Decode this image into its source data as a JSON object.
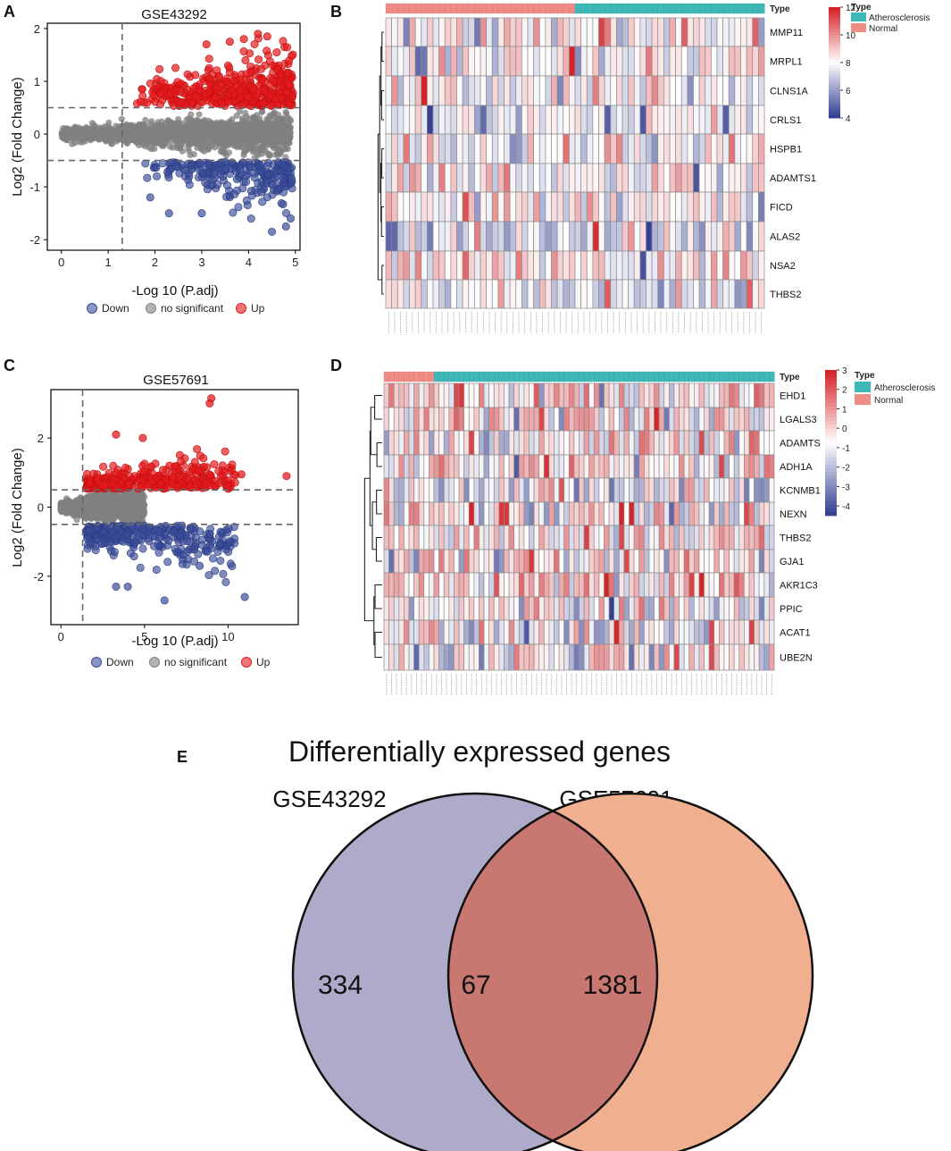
{
  "panels": {
    "A": "A",
    "B": "B",
    "C": "C",
    "D": "D",
    "E": "E"
  },
  "chart_data": [
    {
      "id": "A",
      "type": "scatter",
      "title": "GSE43292",
      "xlabel": "-Log 10 (P.adj)",
      "ylabel": "Log2 (Fold Change)",
      "xlim": [
        -0.3,
        5.1
      ],
      "ylim": [
        -2.2,
        2.1
      ],
      "xticks": [
        "0",
        "1",
        "2",
        "3",
        "4",
        "5"
      ],
      "yticks": [
        "-2",
        "-1",
        "0",
        "1",
        "2"
      ],
      "thresholds": {
        "x": 1.3,
        "y": [
          0.5,
          -0.5
        ]
      },
      "legend": [
        "Down",
        "no significant",
        "Up"
      ],
      "colors": {
        "Down": "#3a4d9a",
        "no significant": "#808080",
        "Up": "#e41a1c"
      },
      "series_summary": {
        "max_x": 4.95,
        "max_up": 1.9,
        "min_down": -1.9
      }
    },
    {
      "id": "C",
      "type": "scatter",
      "title": "GSE57691",
      "xlabel": "-Log 10 (P.adj)",
      "ylabel": "Log2 (Fold Change)",
      "xlim": [
        -0.6,
        14.2
      ],
      "ylim": [
        -3.4,
        3.4
      ],
      "xticks": [
        "0",
        "5",
        "10"
      ],
      "yticks": [
        "-2",
        "0",
        "2"
      ],
      "thresholds": {
        "x": 1.3,
        "y": [
          0.5,
          -0.5
        ]
      },
      "legend": [
        "Down",
        "no significant",
        "Up"
      ],
      "colors": {
        "Down": "#3a4d9a",
        "no significant": "#808080",
        "Up": "#e41a1c"
      },
      "series_summary": {
        "max_x": 13.5,
        "max_up": 3.2,
        "min_down": -2.7
      }
    },
    {
      "id": "B",
      "type": "heatmap",
      "genes": [
        "MMP11",
        "MRPL1",
        "CLNS1A",
        "CRLS1",
        "HSPB1",
        "ADAMTS1",
        "FICD",
        "ALAS2",
        "NSA2",
        "THBS2"
      ],
      "n_normal": 32,
      "n_athero": 32,
      "scale": {
        "min": 4,
        "max": 12,
        "ticks": [
          "4",
          "6",
          "8",
          "10",
          "12"
        ]
      },
      "annotation_label": "Type",
      "legend_title": "Type",
      "groups": [
        "Atherosclerosis",
        "Normal"
      ],
      "group_colors": {
        "Atherosclerosis": "#3fb8b8",
        "Normal": "#ef8c86"
      }
    },
    {
      "id": "D",
      "type": "heatmap",
      "genes": [
        "EHD1",
        "LGALS3",
        "ADAMTS",
        "ADH1A",
        "KCNMB1",
        "NEXN",
        "THBS2",
        "GJA1",
        "AKR1C3",
        "PPIC",
        "ACAT1",
        "UBE2N"
      ],
      "n_normal": 10,
      "n_athero": 68,
      "scale": {
        "min": -4.5,
        "max": 3,
        "ticks": [
          "3",
          "2",
          "1",
          "0",
          "-1",
          "-2",
          "-3",
          "-4"
        ]
      },
      "annotation_label": "Type",
      "legend_title": "Type",
      "groups": [
        "Atherosclerosis",
        "Normal"
      ],
      "group_colors": {
        "Atherosclerosis": "#3fb8b8",
        "Normal": "#ef8c86"
      }
    },
    {
      "id": "E",
      "type": "venn",
      "title": "Differentially expressed genes",
      "sets": [
        {
          "name": "GSE43292",
          "only": "334",
          "color": "#9d9ac4"
        },
        {
          "name": "GSE57691",
          "only": "1381",
          "color": "#f0a07c"
        }
      ],
      "overlap": "67",
      "overlap_color": "#c87771"
    }
  ]
}
